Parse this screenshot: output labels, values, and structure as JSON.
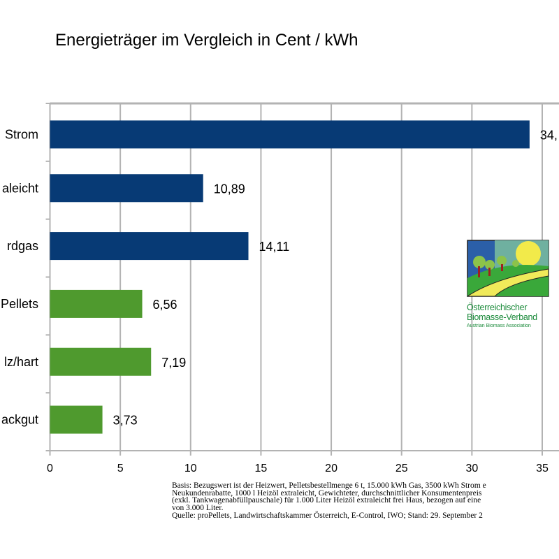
{
  "chart_data": {
    "type": "bar",
    "orientation": "horizontal",
    "title": "Energieträger im Vergleich in Cent / kWh",
    "categories": [
      "Strom",
      "aleicht",
      "rdgas",
      "Pellets",
      "lz/hart",
      "ackgut"
    ],
    "values": [
      34.1,
      10.89,
      14.11,
      6.56,
      7.19,
      3.73
    ],
    "data_labels": [
      "34,",
      "10,89",
      "14,11",
      "6,56",
      "7,19",
      "3,73"
    ],
    "bar_colors": [
      "#073a75",
      "#073a75",
      "#073a75",
      "#4f9a2e",
      "#4f9a2e",
      "#4f9a2e"
    ],
    "xlim": [
      0,
      35
    ],
    "xticks": [
      "0",
      "5",
      "10",
      "15",
      "20",
      "25",
      "30",
      "35"
    ],
    "grid": true,
    "xlabel": "",
    "ylabel": ""
  },
  "footnote": [
    "Basis: Bezugswert ist der Heizwert, Pelletsbestellmenge 6 t, 15.000 kWh Gas, 3500 kWh Strom e",
    "Neukundenrabatte, 1000 l Heizöl extraleicht, Gewichteter, durchschnittlicher Konsumentenpreis",
    "(exkl. Tankwagenabfüllpauschale) für 1.000 Liter Heizöl extraleicht frei Haus, bezogen auf eine",
    "von 3.000 Liter.",
    "Quelle: proPellets, Landwirtschaftskammer Österreich, E-Control, IWO; Stand: 29. September 2"
  ],
  "logo": {
    "line1": "Österreichischer",
    "line2": "Biomasse-Verband",
    "line3": "Austrian Biomass Association"
  }
}
